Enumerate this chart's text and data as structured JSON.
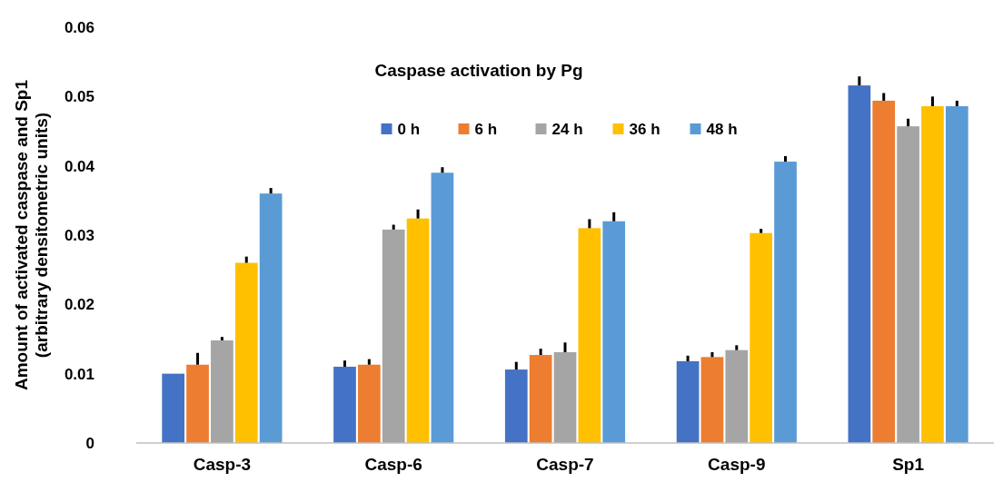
{
  "chart_data": {
    "type": "bar",
    "title": "Caspase activation by Pg",
    "ylabel": "Amount of activated caspase and Sp1\n(arbitrary densitometric units)",
    "categories": [
      "Casp-3",
      "Casp-6",
      "Casp-7",
      "Casp-9",
      "Sp1"
    ],
    "series": [
      {
        "name": "0 h",
        "color": "#4472c4",
        "values": [
          0.01,
          0.011,
          0.0106,
          0.0118,
          0.0516
        ],
        "errors": [
          null,
          [
            0.011,
            0.0119
          ],
          [
            0.0106,
            0.0117
          ],
          [
            0.0118,
            0.0126
          ],
          [
            0.0516,
            0.0529
          ]
        ]
      },
      {
        "name": "6 h",
        "color": "#ed7d31",
        "values": [
          0.0113,
          0.0113,
          0.0127,
          0.0124,
          0.0494
        ],
        "errors": [
          [
            0.0113,
            0.013
          ],
          [
            0.0113,
            0.0121
          ],
          [
            0.0127,
            0.0136
          ],
          [
            0.0124,
            0.0131
          ],
          [
            0.0494,
            0.0505
          ]
        ]
      },
      {
        "name": "24 h",
        "color": "#a5a5a5",
        "values": [
          0.0148,
          0.0308,
          0.0131,
          0.0134,
          0.0457
        ],
        "errors": [
          [
            0.0148,
            0.0153
          ],
          [
            0.0308,
            0.0315
          ],
          [
            0.0131,
            0.0145
          ],
          [
            0.0134,
            0.0141
          ],
          [
            0.0457,
            0.0468
          ]
        ]
      },
      {
        "name": "36 h",
        "color": "#ffc000",
        "values": [
          0.026,
          0.0324,
          0.031,
          0.0303,
          0.0486
        ],
        "errors": [
          [
            0.026,
            0.0269
          ],
          [
            0.0324,
            0.0337
          ],
          [
            0.031,
            0.0323
          ],
          [
            0.0303,
            0.0309
          ],
          [
            0.0486,
            0.05
          ]
        ]
      },
      {
        "name": "48 h",
        "color": "#5b9bd5",
        "values": [
          0.036,
          0.039,
          0.032,
          0.0406,
          0.0486
        ],
        "errors": [
          [
            0.036,
            0.0368
          ],
          [
            0.039,
            0.0398
          ],
          [
            0.032,
            0.0333
          ],
          [
            0.0406,
            0.0414
          ],
          [
            0.0486,
            0.0494
          ]
        ]
      }
    ],
    "ylim": [
      0,
      0.06
    ],
    "yticks": [
      0,
      0.01,
      0.02,
      0.03,
      0.04,
      0.05,
      0.06
    ],
    "grid": false,
    "legend": "top"
  }
}
